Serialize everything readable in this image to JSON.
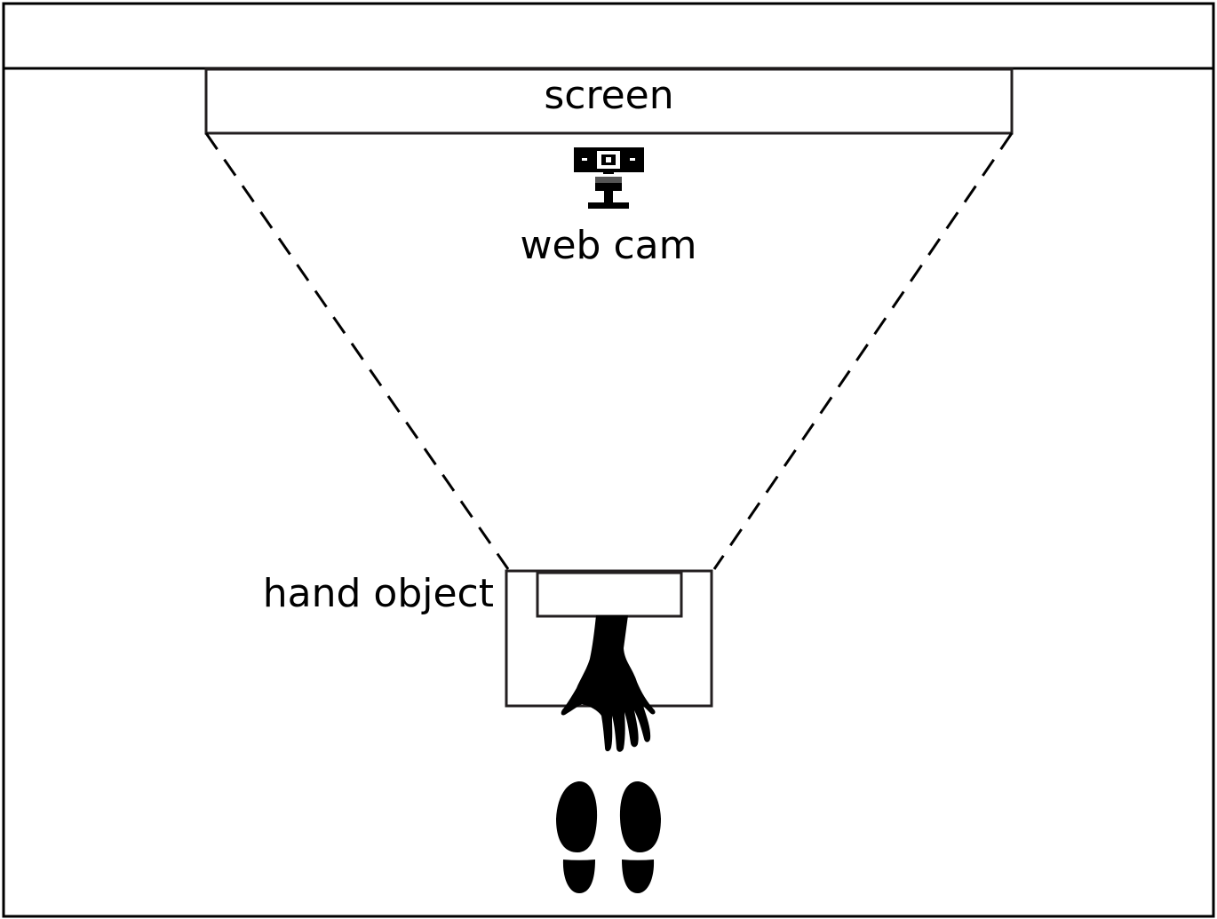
{
  "diagram": {
    "screen_label": "screen",
    "webcam_label": "web cam",
    "hand_object_label": "hand object"
  },
  "icons": {
    "webcam": "webcam-icon",
    "hand": "hand-icon",
    "footprints": "footprints-icon"
  },
  "colors": {
    "stroke": "#000000",
    "box_stroke": "#231f20",
    "background": "#ffffff"
  }
}
